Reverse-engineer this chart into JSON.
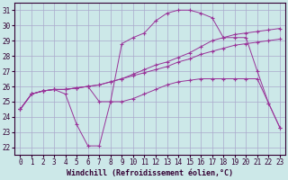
{
  "background_color": "#cce8e8",
  "grid_color": "#aaaacc",
  "line_color": "#993399",
  "xlabel": "Windchill (Refroidissement éolien,°C)",
  "xlim": [
    -0.5,
    23.5
  ],
  "ylim": [
    21.5,
    31.5
  ],
  "yticks": [
    22,
    23,
    24,
    25,
    26,
    27,
    28,
    29,
    30,
    31
  ],
  "xticks": [
    0,
    1,
    2,
    3,
    4,
    5,
    6,
    7,
    8,
    9,
    10,
    11,
    12,
    13,
    14,
    15,
    16,
    17,
    18,
    19,
    20,
    21,
    22,
    23
  ],
  "lines": [
    [
      24.5,
      25.5,
      25.7,
      25.8,
      25.5,
      23.5,
      22.1,
      22.1,
      25.0,
      25.0,
      25.2,
      25.5,
      25.8,
      26.1,
      26.3,
      26.4,
      26.5,
      26.5,
      26.5,
      26.5,
      26.5,
      26.5,
      24.9,
      23.3
    ],
    [
      24.5,
      25.5,
      25.7,
      25.8,
      25.8,
      25.9,
      26.0,
      26.1,
      26.3,
      26.5,
      26.7,
      26.9,
      27.1,
      27.3,
      27.6,
      27.8,
      28.1,
      28.3,
      28.5,
      28.7,
      28.8,
      28.9,
      29.0,
      29.1
    ],
    [
      24.5,
      25.5,
      25.7,
      25.8,
      25.8,
      25.9,
      26.0,
      26.1,
      26.3,
      26.5,
      26.8,
      27.1,
      27.4,
      27.6,
      27.9,
      28.2,
      28.6,
      29.0,
      29.2,
      29.4,
      29.5,
      29.6,
      29.7,
      29.8
    ],
    [
      24.5,
      25.5,
      25.7,
      25.8,
      25.8,
      25.9,
      26.0,
      25.0,
      25.0,
      28.8,
      29.2,
      29.5,
      30.3,
      30.8,
      31.0,
      31.0,
      30.8,
      30.5,
      29.2,
      29.2,
      29.2,
      27.0,
      24.9,
      23.3
    ]
  ]
}
